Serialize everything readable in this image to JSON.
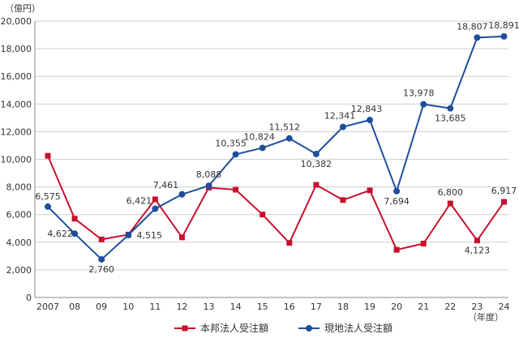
{
  "chart_data": {
    "type": "line",
    "y_unit": "（億円）",
    "x_unit": "（年度）",
    "categories": [
      "2007",
      "08",
      "09",
      "10",
      "11",
      "12",
      "13",
      "14",
      "15",
      "16",
      "17",
      "18",
      "19",
      "20",
      "21",
      "22",
      "23",
      "24"
    ],
    "ylim": [
      0,
      20000
    ],
    "yticks": [
      0,
      2000,
      4000,
      6000,
      8000,
      10000,
      12000,
      14000,
      16000,
      18000,
      20000
    ],
    "ytick_labels": [
      "0",
      "2,000",
      "4,000",
      "6,000",
      "8,000",
      "10,000",
      "12,000",
      "14,000",
      "16,000",
      "18,000",
      "20,000"
    ],
    "grid": true,
    "legend_position": "bottom",
    "series": [
      {
        "name": "本邦法人受注額",
        "color": "#c8102e",
        "marker": "square",
        "values": [
          10250,
          5700,
          4200,
          4550,
          7100,
          4350,
          7950,
          7800,
          6000,
          3950,
          8150,
          7050,
          7750,
          3450,
          3900,
          6800,
          4123,
          6917
        ],
        "labels": [
          {
            "index": 22,
            "text": "6,800",
            "value_index": 15
          },
          {
            "index": 16,
            "text": "4,123",
            "value_index": 16
          },
          {
            "index": 17,
            "text": "6,917",
            "value_index": 17
          }
        ]
      },
      {
        "name": "現地法人受注額",
        "color": "#1f4e9c",
        "marker": "circle",
        "values": [
          6575,
          4622,
          2760,
          4515,
          6421,
          7461,
          8088,
          10355,
          10824,
          11512,
          10382,
          12341,
          12843,
          7694,
          13978,
          13685,
          18807,
          18891
        ],
        "labels": [
          "6,575",
          "4,622",
          "2,760",
          "4,515",
          "6,421",
          "7,461",
          "8,088",
          "10,355",
          "10,824",
          "11,512",
          "10,382",
          "12,341",
          "12,843",
          "7,694",
          "13,978",
          "13,685",
          "18,807",
          "18,891"
        ]
      }
    ]
  }
}
